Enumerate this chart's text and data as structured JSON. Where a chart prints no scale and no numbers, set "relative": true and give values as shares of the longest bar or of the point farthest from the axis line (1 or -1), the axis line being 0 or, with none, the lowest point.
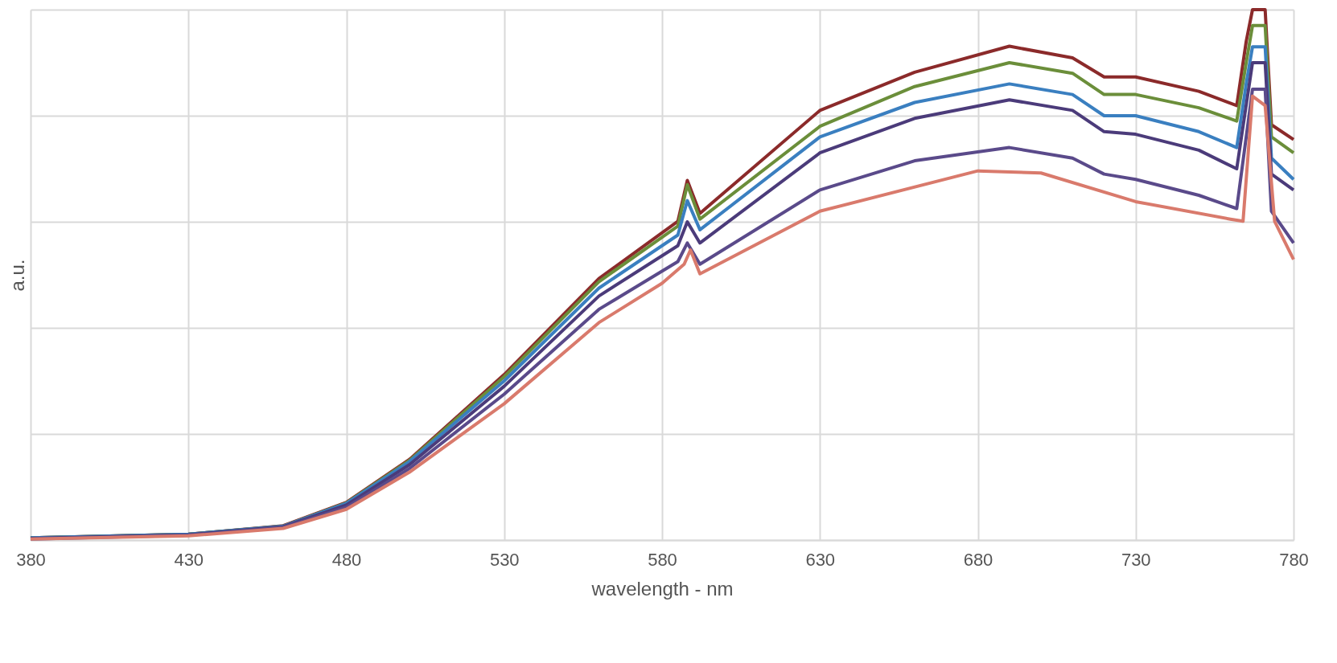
{
  "chart_data": {
    "type": "line",
    "xlabel": "wavelength - nm",
    "ylabel": "a.u.",
    "relative": true,
    "grid": true,
    "marker": "none",
    "line_style": "solid",
    "xlim": [
      380,
      780
    ],
    "xticks": [
      380,
      430,
      480,
      530,
      580,
      630,
      680,
      730,
      780
    ],
    "series": [
      {
        "color": "#8b2a2a",
        "x": [
          380,
          430,
          460,
          480,
          500,
          530,
          560,
          585,
          588,
          592,
          630,
          660,
          690,
          710,
          720,
          730,
          750,
          762,
          765,
          767,
          771,
          773,
          780
        ],
        "values": [
          0.004,
          0.011,
          0.027,
          0.071,
          0.152,
          0.312,
          0.493,
          0.601,
          0.678,
          0.616,
          0.81,
          0.882,
          0.931,
          0.909,
          0.873,
          0.873,
          0.846,
          0.819,
          0.94,
          1.0,
          1.0,
          0.783,
          0.755
        ]
      },
      {
        "color": "#6b8e3a",
        "x": [
          380,
          430,
          460,
          480,
          500,
          530,
          560,
          585,
          588,
          592,
          630,
          660,
          690,
          710,
          720,
          730,
          750,
          762,
          765,
          767,
          771,
          773,
          780
        ],
        "values": [
          0.004,
          0.011,
          0.026,
          0.07,
          0.15,
          0.308,
          0.487,
          0.592,
          0.67,
          0.605,
          0.78,
          0.855,
          0.9,
          0.88,
          0.84,
          0.84,
          0.815,
          0.79,
          0.9,
          0.97,
          0.97,
          0.76,
          0.73
        ]
      },
      {
        "color": "#3a7fc0",
        "x": [
          380,
          430,
          460,
          480,
          500,
          530,
          560,
          585,
          588,
          592,
          630,
          660,
          690,
          710,
          720,
          730,
          750,
          762,
          765,
          767,
          771,
          773,
          780
        ],
        "values": [
          0.004,
          0.011,
          0.026,
          0.069,
          0.148,
          0.3,
          0.475,
          0.575,
          0.64,
          0.585,
          0.76,
          0.825,
          0.86,
          0.84,
          0.8,
          0.8,
          0.77,
          0.74,
          0.86,
          0.93,
          0.93,
          0.72,
          0.68
        ]
      },
      {
        "color": "#4b3b7a",
        "x": [
          380,
          430,
          460,
          480,
          500,
          530,
          560,
          585,
          588,
          592,
          630,
          660,
          690,
          710,
          720,
          730,
          750,
          762,
          765,
          767,
          771,
          773,
          780
        ],
        "values": [
          0.003,
          0.01,
          0.025,
          0.066,
          0.142,
          0.29,
          0.46,
          0.555,
          0.6,
          0.56,
          0.73,
          0.795,
          0.83,
          0.81,
          0.77,
          0.765,
          0.735,
          0.7,
          0.82,
          0.9,
          0.9,
          0.69,
          0.66
        ]
      },
      {
        "color": "#5a4a8a",
        "x": [
          380,
          430,
          460,
          480,
          500,
          530,
          560,
          585,
          588,
          592,
          630,
          660,
          690,
          710,
          720,
          730,
          750,
          762,
          765,
          767,
          771,
          773,
          780
        ],
        "values": [
          0.002,
          0.009,
          0.024,
          0.062,
          0.135,
          0.275,
          0.435,
          0.525,
          0.56,
          0.52,
          0.66,
          0.715,
          0.74,
          0.72,
          0.69,
          0.68,
          0.65,
          0.625,
          0.76,
          0.85,
          0.85,
          0.62,
          0.56
        ]
      },
      {
        "color": "#d97a6c",
        "x": [
          380,
          430,
          460,
          480,
          500,
          530,
          560,
          580,
          587,
          589,
          592,
          630,
          680,
          700,
          730,
          760,
          764,
          767,
          771,
          774,
          780
        ],
        "values": [
          0.002,
          0.008,
          0.022,
          0.058,
          0.128,
          0.257,
          0.41,
          0.484,
          0.52,
          0.547,
          0.502,
          0.62,
          0.696,
          0.692,
          0.638,
          0.605,
          0.601,
          0.837,
          0.819,
          0.601,
          0.529
        ]
      }
    ]
  }
}
